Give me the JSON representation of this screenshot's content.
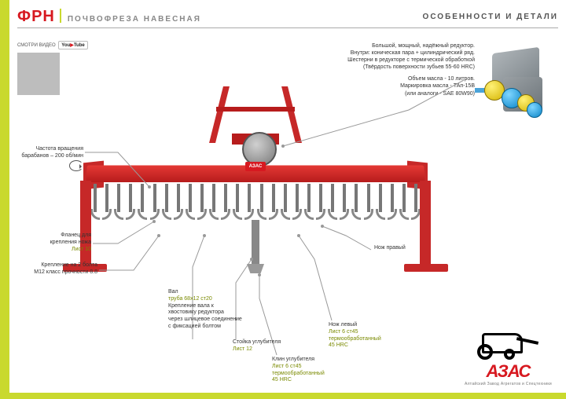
{
  "header": {
    "code": "ФРН",
    "subtitle": "ПОЧВОФРЕЗА НАВЕСНАЯ",
    "right": "ОСОБЕННОСТИ И ДЕТАЛИ"
  },
  "youtube": {
    "label": "СМОТРИ ВИДЕО",
    "brand_pre": "You",
    "brand_post": "Tube"
  },
  "spec_right": {
    "l1": "Большой, мощный, надёжный редуктор.",
    "l2": "Внутри: коническая пара + цилиндрический ряд.",
    "l3": "Шестерни в редукторе с термической обработкой",
    "l4": "(Твёрдость поверхности зубьев 55-60 HRC)",
    "gap": "",
    "l5": "Объем масла - 10 литров.",
    "l6": "Маркировка масла - ТАп-15В",
    "l7": "(или аналоги - SAE 80W90)"
  },
  "callouts": {
    "rotation": {
      "text": "Частота вращения барабанов – 200 об/мин"
    },
    "flange": {
      "t1": "Фланец для",
      "t2": "крепления ножа",
      "hl": "Лист 10"
    },
    "bolts": {
      "t1": "Крепление на 2 болта",
      "t2": "М12 класс прочности 8.8"
    },
    "shaft": {
      "t1": "Вал",
      "hl": "труба 68x12 ст20",
      "t2": "Крепление вала к",
      "t3": "хвостовику редуктора",
      "t4": "через шлицевое соединение",
      "t5": "с фиксацией болтом"
    },
    "stand": {
      "t1": "Стойка углубителя",
      "hl": "Лист 12"
    },
    "wedge": {
      "t1": "Клин углубителя",
      "hl1": "Лист 6 ст45",
      "hl2": "термообработанный",
      "hl3": "45 HRC"
    },
    "blade_l": {
      "t1": "Нож левый",
      "hl1": "Лист 6 ст45",
      "hl2": "термообработанный",
      "hl3": "45 HRC"
    },
    "blade_r": {
      "t1": "Нож правый"
    }
  },
  "logo": {
    "text": "АЗАС",
    "sub": "Алтайский Завод Агрегатов и Спецтехники"
  },
  "machine": {
    "blade_count": 28,
    "colors": {
      "red": "#c62828",
      "red_dark": "#b71c1c",
      "steel": "#888888"
    }
  },
  "brand_badge": "АЗАС",
  "cad": {
    "case_color": "#8a9094",
    "gear_blue": "#0a84c8",
    "gear_yellow": "#d4b400"
  }
}
